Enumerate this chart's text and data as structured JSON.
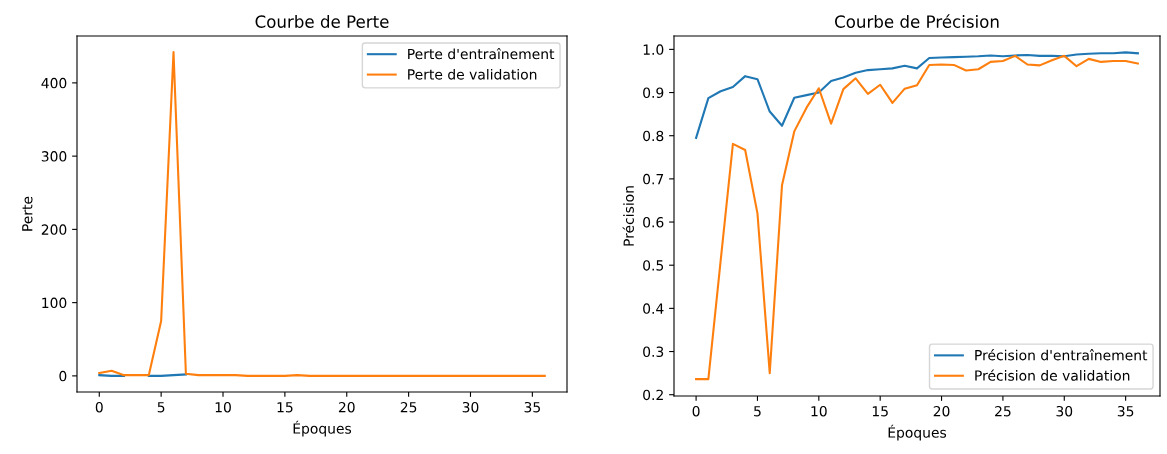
{
  "chart_data": [
    {
      "type": "line",
      "title": "Courbe de Perte",
      "xlabel": "Époques",
      "ylabel": "Perte",
      "x": [
        0,
        1,
        2,
        3,
        4,
        5,
        6,
        7,
        8,
        9,
        10,
        11,
        12,
        13,
        14,
        15,
        16,
        17,
        18,
        19,
        20,
        21,
        22,
        23,
        24,
        25,
        26,
        27,
        28,
        29,
        30,
        31,
        32,
        33,
        34,
        35,
        36
      ],
      "series": [
        {
          "name": "Perte d'entraînement",
          "color": "#1f77b4",
          "values": [
            1,
            0,
            0,
            null,
            0,
            0,
            1,
            2,
            null,
            null,
            null,
            null,
            null,
            null,
            null,
            null,
            null,
            null,
            null,
            null,
            null,
            null,
            null,
            null,
            null,
            null,
            null,
            null,
            null,
            null,
            null,
            null,
            null,
            null,
            null,
            null,
            null
          ]
        },
        {
          "name": "Perte de validation",
          "color": "#ff7f0e",
          "values": [
            4,
            7,
            1,
            1,
            1,
            75,
            442,
            3,
            1,
            1,
            1,
            1,
            0,
            0,
            0,
            0,
            1,
            0,
            0,
            0,
            0,
            0,
            0,
            0,
            0,
            0,
            0,
            0,
            0,
            0,
            0,
            0,
            0,
            0,
            0,
            0,
            0
          ]
        }
      ],
      "xlim": [
        -1.8,
        37.8
      ],
      "ylim": [
        -22,
        464
      ],
      "xticks": [
        0,
        5,
        10,
        15,
        20,
        25,
        30,
        35
      ],
      "yticks": [
        0,
        100,
        200,
        300,
        400
      ],
      "legend": "top right",
      "grid": false
    },
    {
      "type": "line",
      "title": "Courbe de Précision",
      "xlabel": "Époques",
      "ylabel": "Précision",
      "x": [
        0,
        1,
        2,
        3,
        4,
        5,
        6,
        7,
        8,
        9,
        10,
        11,
        12,
        13,
        14,
        15,
        16,
        17,
        18,
        19,
        20,
        21,
        22,
        23,
        24,
        25,
        26,
        27,
        28,
        29,
        30,
        31,
        32,
        33,
        34,
        35,
        36
      ],
      "series": [
        {
          "name": "Précision d'entraînement",
          "color": "#1f77b4",
          "values": [
            0.795,
            0.887,
            0.903,
            0.913,
            0.938,
            0.931,
            0.856,
            0.823,
            0.888,
            0.894,
            0.9,
            0.927,
            0.935,
            0.946,
            0.952,
            0.954,
            0.956,
            0.962,
            0.956,
            0.98,
            0.981,
            0.982,
            0.983,
            0.984,
            0.986,
            0.984,
            0.986,
            0.987,
            0.985,
            0.985,
            0.984,
            0.988,
            0.99,
            0.991,
            0.991,
            0.993,
            0.991
          ]
        },
        {
          "name": "Précision de validation",
          "color": "#ff7f0e",
          "values": [
            0.236,
            0.236,
            0.51,
            0.781,
            0.767,
            0.62,
            0.25,
            0.685,
            0.81,
            0.865,
            0.91,
            0.828,
            0.908,
            0.933,
            0.897,
            0.918,
            0.876,
            0.909,
            0.917,
            0.964,
            0.965,
            0.964,
            0.951,
            0.954,
            0.971,
            0.973,
            0.985,
            0.965,
            0.963,
            0.975,
            0.985,
            0.961,
            0.978,
            0.971,
            0.973,
            0.973,
            0.967
          ]
        }
      ],
      "xlim": [
        -1.8,
        37.8
      ],
      "ylim": [
        0.197,
        1.031
      ],
      "xticks": [
        0,
        5,
        10,
        15,
        20,
        25,
        30,
        35
      ],
      "yticks": [
        0.2,
        0.3,
        0.4,
        0.5,
        0.6,
        0.7,
        0.8,
        0.9,
        {
          "value": 1,
          "label": "1.0"
        }
      ],
      "legend": "bottom right",
      "grid": false
    }
  ]
}
